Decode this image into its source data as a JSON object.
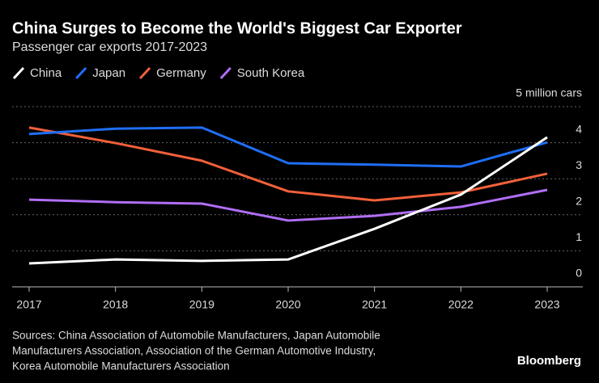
{
  "chart_data": {
    "type": "line",
    "title": "China Surges to Become the World's Biggest Car Exporter",
    "subtitle": "Passenger car exports 2017-2023",
    "categories": [
      "2017",
      "2018",
      "2019",
      "2020",
      "2021",
      "2022",
      "2023"
    ],
    "series": [
      {
        "name": "China",
        "color": "#ffffff",
        "values": [
          0.65,
          0.76,
          0.72,
          0.76,
          1.61,
          2.56,
          4.15
        ]
      },
      {
        "name": "Japan",
        "color": "#1f6ef5",
        "values": [
          4.24,
          4.39,
          4.42,
          3.43,
          3.39,
          3.34,
          4.01
        ]
      },
      {
        "name": "Germany",
        "color": "#f2603a",
        "values": [
          4.42,
          3.99,
          3.5,
          2.65,
          2.4,
          2.62,
          3.14
        ]
      },
      {
        "name": "South Korea",
        "color": "#b06ef5",
        "values": [
          2.42,
          2.35,
          2.31,
          1.84,
          1.97,
          2.22,
          2.69
        ]
      }
    ],
    "ylim": [
      0,
      5
    ],
    "yticks": [
      0,
      1,
      2,
      3,
      4,
      {
        "value": 5,
        "label": "5 million cars"
      }
    ],
    "grid": true,
    "source": [
      "Sources: China Association of Automobile Manufacturers, Japan Automobile",
      "Manufacturers Association, Association of the German Automotive Industry,",
      "Korea Automobile Manufacturers Association"
    ],
    "brand": "Bloomberg"
  }
}
